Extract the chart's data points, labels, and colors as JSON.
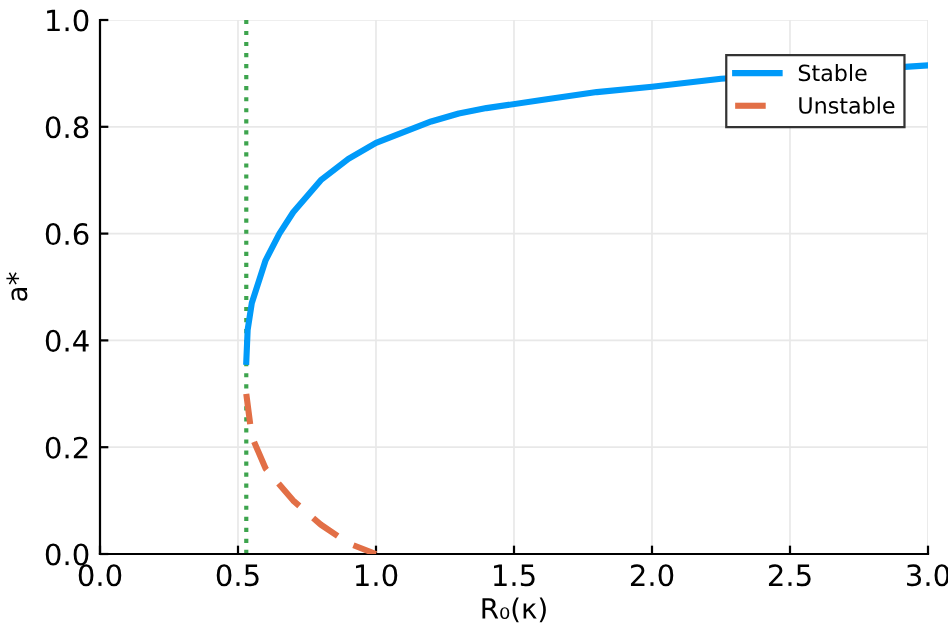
{
  "chart_data": {
    "type": "line",
    "xlabel": "R₀(κ)",
    "ylabel": "a*",
    "xlim": [
      0,
      3
    ],
    "ylim": [
      0,
      1
    ],
    "xticks": [
      {
        "value": 0,
        "label": "0.0"
      },
      0.5,
      {
        "value": 1,
        "label": "1.0"
      },
      1.5,
      {
        "value": 2,
        "label": "2.0"
      },
      2.5,
      {
        "value": 3,
        "label": "3.0"
      }
    ],
    "yticks": [
      {
        "value": 0,
        "label": "0.0"
      },
      0.2,
      0.4,
      0.6,
      0.8,
      {
        "value": 1,
        "label": "1.0"
      }
    ],
    "grid": true,
    "legend": "top right",
    "series": [
      {
        "name": "Stable",
        "color": "#009af9",
        "line_style": "solid",
        "x": [
          0.53,
          0.535,
          0.55,
          0.6,
          0.65,
          0.7,
          0.75,
          0.8,
          0.9,
          1.0,
          1.1,
          1.2,
          1.3,
          1.4,
          1.6,
          1.8,
          2.0,
          2.25,
          3.0
        ],
        "values": [
          0.36,
          0.42,
          0.47,
          0.55,
          0.6,
          0.64,
          0.67,
          0.7,
          0.74,
          0.77,
          0.79,
          0.81,
          0.825,
          0.835,
          0.85,
          0.865,
          0.875,
          0.89,
          0.915
        ]
      },
      {
        "name": "Unstable",
        "color": "#e26f46",
        "line_style": "dashed",
        "x": [
          0.53,
          0.55,
          0.6,
          0.7,
          0.8,
          0.9,
          1.0
        ],
        "values": [
          0.3,
          0.22,
          0.16,
          0.1,
          0.055,
          0.02,
          0.0
        ]
      }
    ],
    "ref_lines": [
      {
        "axis": "x",
        "value": 0.53,
        "color": "#3da44d",
        "line_style": "dotted"
      }
    ]
  }
}
